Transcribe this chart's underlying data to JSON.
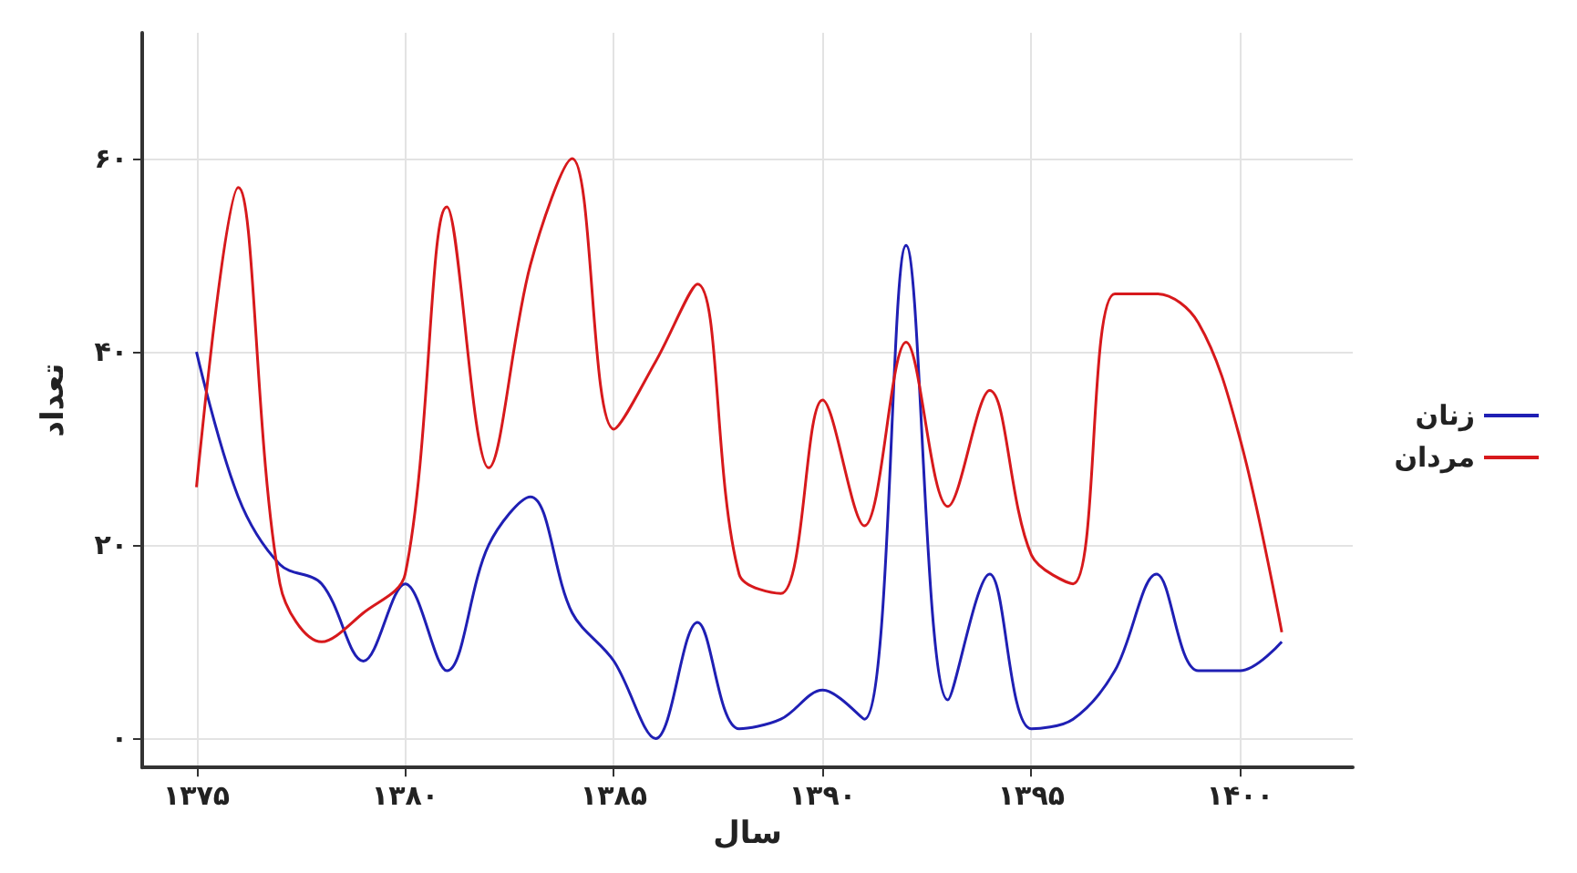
{
  "chart_data": {
    "type": "line",
    "xlabel": "سال",
    "ylabel": "تعداد",
    "x": [
      1375,
      1376,
      1377,
      1378,
      1379,
      1380,
      1381,
      1382,
      1383,
      1384,
      1385,
      1386,
      1387,
      1388,
      1389,
      1390,
      1391,
      1392,
      1393,
      1394,
      1395,
      1396,
      1397,
      1398,
      1399,
      1400,
      1401
    ],
    "series": [
      {
        "name": "زنان",
        "color": "#1f1fb4",
        "values": [
          40,
          25,
          18,
          16,
          8,
          16,
          7,
          20,
          25,
          13,
          8,
          0,
          12,
          1,
          2,
          5,
          2,
          51,
          4,
          17,
          1,
          2,
          7,
          17,
          7,
          7,
          10
        ]
      },
      {
        "name": "مردان",
        "color": "#d7191c",
        "values": [
          26,
          57,
          16,
          10,
          13,
          17,
          55,
          28,
          49,
          60,
          32,
          39,
          47,
          17,
          15,
          35,
          22,
          41,
          24,
          36,
          19,
          16,
          46,
          46,
          43,
          31,
          11
        ]
      }
    ],
    "xlim": [
      1373.7,
      1402.7
    ],
    "ylim": [
      -3,
      73
    ],
    "xticks": [
      {
        "value": 1375,
        "label": "۱۳۷۵"
      },
      {
        "value": 1380,
        "label": "۱۳۸۰"
      },
      {
        "value": 1385,
        "label": "۱۳۸۵"
      },
      {
        "value": 1390,
        "label": "۱۳۹۰"
      },
      {
        "value": 1395,
        "label": "۱۳۹۵"
      },
      {
        "value": 1400,
        "label": "۱۴۰۰"
      }
    ],
    "yticks": [
      {
        "value": 0,
        "label": "۰"
      },
      {
        "value": 20,
        "label": "۲۰"
      },
      {
        "value": 40,
        "label": "۴۰"
      },
      {
        "value": 60,
        "label": "۶۰"
      }
    ],
    "grid": true,
    "legend": "right",
    "marker": "none",
    "line_style": "solid"
  }
}
